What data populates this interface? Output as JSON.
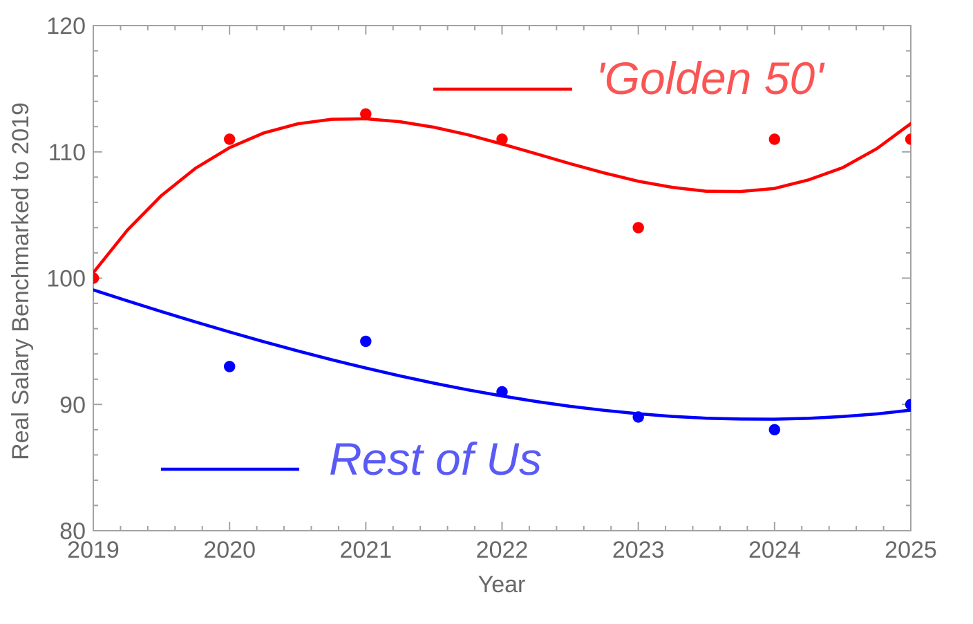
{
  "colors": {
    "frame": "#A2A2A2",
    "axis_text": "#686868",
    "golden_line": "#FF0000",
    "golden_label": "#FA5555",
    "rest_line": "#0000FF",
    "rest_label": "#5A5AF5"
  },
  "axes": {
    "xlabel": "Year",
    "ylabel": "Real Salary Benchmarked to 2019",
    "x_tick_labels": [
      "2019",
      "2020",
      "2021",
      "2022",
      "2023",
      "2024",
      "2025"
    ],
    "y_tick_labels": [
      "80",
      "90",
      "100",
      "110",
      "120"
    ]
  },
  "chart_data": {
    "type": "scatter",
    "title": "",
    "xlabel": "Year",
    "ylabel": "Real Salary Benchmarked to 2019",
    "xlim": [
      2019,
      2025
    ],
    "ylim": [
      80,
      120
    ],
    "x_major_ticks": [
      2019,
      2020,
      2021,
      2022,
      2023,
      2024,
      2025
    ],
    "y_major_ticks": [
      80,
      90,
      100,
      110,
      120
    ],
    "x_minor_step": 0.2,
    "y_minor_step": 2,
    "grid": false,
    "legend_position": "inside",
    "x": [
      2019,
      2020,
      2021,
      2022,
      2023,
      2024,
      2025
    ],
    "series": [
      {
        "name": "'Golden 50'",
        "color": "#FF0000",
        "label_color": "#FA5555",
        "marker": "point",
        "values": [
          100,
          111,
          113,
          111,
          104,
          111,
          111
        ],
        "fit_curve": {
          "t_start": 2019,
          "t_step": 0.25,
          "values": [
            100.43,
            103.8,
            106.54,
            108.7,
            110.33,
            111.49,
            112.22,
            112.58,
            112.62,
            112.39,
            111.95,
            111.35,
            110.62,
            109.85,
            109.06,
            108.33,
            107.67,
            107.19,
            106.88,
            106.86,
            107.1,
            107.78,
            108.75,
            110.25,
            112.24
          ]
        }
      },
      {
        "name": "Rest of Us",
        "color": "#0000FF",
        "label_color": "#5A5AF5",
        "marker": "point",
        "values": [
          100,
          93,
          95,
          91,
          89,
          88,
          90
        ],
        "fit_curve": {
          "t_start": 2019,
          "t_step": 0.25,
          "values": [
            99.07,
            98.2,
            97.35,
            96.53,
            95.74,
            94.97,
            94.24,
            93.54,
            92.88,
            92.26,
            91.68,
            91.15,
            90.67,
            90.23,
            89.85,
            89.53,
            89.26,
            89.05,
            88.91,
            88.84,
            88.83,
            88.9,
            89.04,
            89.25,
            89.55
          ]
        }
      }
    ]
  }
}
